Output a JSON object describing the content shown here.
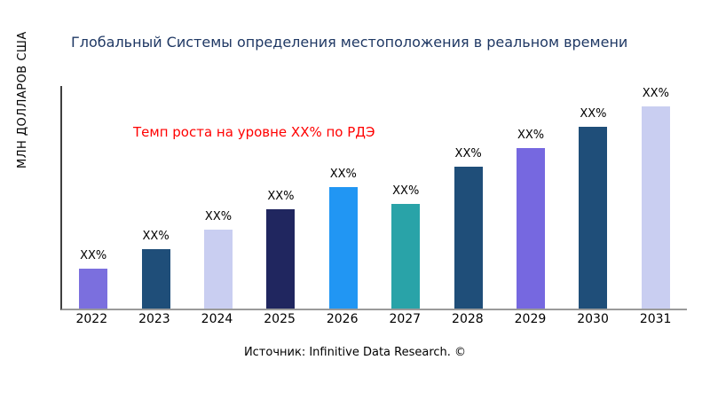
{
  "chart_data": {
    "type": "bar",
    "title": "Глобальный Системы определения местоположения в реальном времени",
    "ylabel": "МЛН ДОЛЛАРОВ США",
    "xlabel": "",
    "annotation": "Темп роста на уровне XX% по РДЭ",
    "annotation_color": "#FF0000",
    "source": "Источник: Infinitive Data Research. ©",
    "categories": [
      "2022",
      "2023",
      "2024",
      "2025",
      "2026",
      "2027",
      "2028",
      "2029",
      "2030",
      "2031"
    ],
    "values": [
      45,
      67,
      89,
      112,
      136,
      118,
      159,
      180,
      204,
      227
    ],
    "values_note": "estimated relative heights; numeric values not labeled on chart",
    "data_labels": [
      "XX%",
      "XX%",
      "XX%",
      "XX%",
      "XX%",
      "XX%",
      "XX%",
      "XX%",
      "XX%",
      "XX%"
    ],
    "bar_colors": [
      "#7B6FDE",
      "#1F4E79",
      "#C9CEF1",
      "#20265F",
      "#2196F3",
      "#29A3A8",
      "#1F4E79",
      "#7668E0",
      "#1F4E79",
      "#C9CEF1"
    ],
    "ylim": [
      0,
      250
    ],
    "grid": false,
    "legend": "none",
    "title_color": "#1F3864"
  }
}
